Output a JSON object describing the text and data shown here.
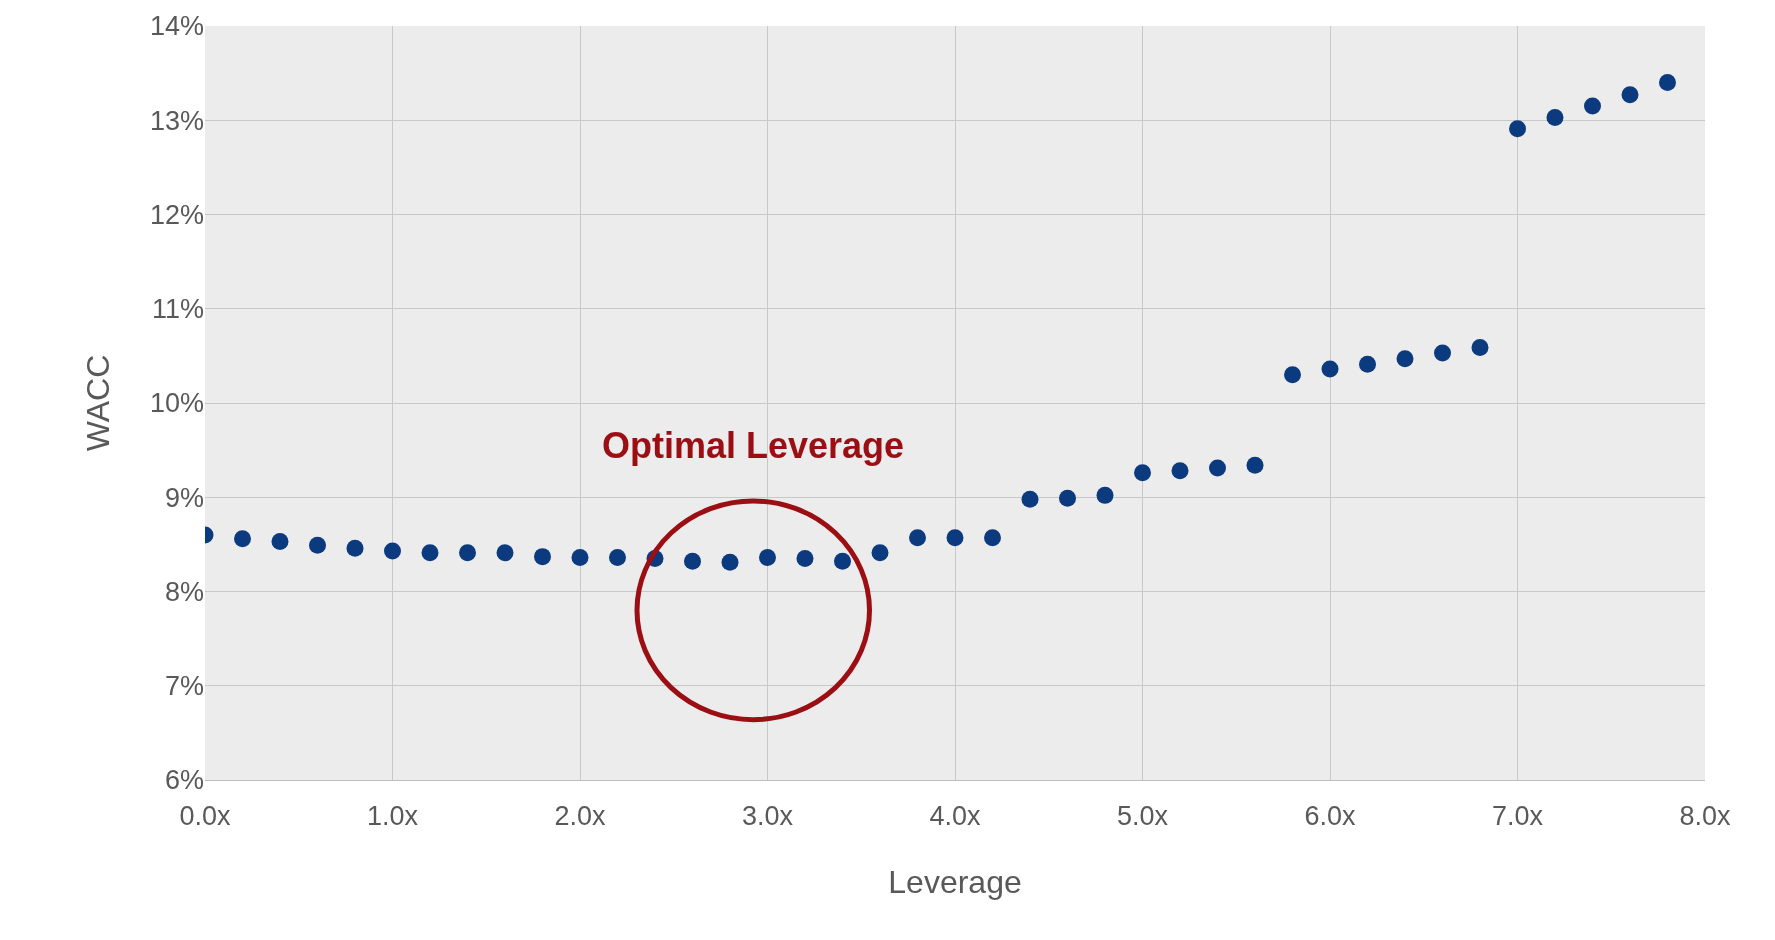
{
  "chart_data": {
    "type": "scatter",
    "xlabel": "Leverage",
    "ylabel": "WACC",
    "marker": "circle",
    "grid": true,
    "legend": false,
    "x": [
      0,
      0.2,
      0.4,
      0.6,
      0.8,
      1.0,
      1.2,
      1.4,
      1.6,
      1.8,
      2.0,
      2.2,
      2.4,
      2.6,
      2.8,
      3.0,
      3.2,
      3.4,
      3.6,
      3.8,
      4.0,
      4.2,
      4.4,
      4.6,
      4.8,
      5.0,
      5.2,
      5.4,
      5.6,
      5.8,
      6.0,
      6.2,
      6.4,
      6.6,
      6.8,
      7.0,
      7.2,
      7.4,
      7.6,
      7.8
    ],
    "series": [
      {
        "color": "#0b3a7e",
        "values": [
          8.6,
          8.56,
          8.53,
          8.49,
          8.46,
          8.43,
          8.41,
          8.41,
          8.41,
          8.37,
          8.36,
          8.36,
          8.35,
          8.32,
          8.31,
          8.36,
          8.35,
          8.32,
          8.41,
          8.57,
          8.57,
          8.57,
          8.98,
          8.99,
          9.02,
          9.26,
          9.28,
          9.31,
          9.34,
          10.3,
          10.36,
          10.41,
          10.47,
          10.53,
          10.59,
          12.91,
          13.03,
          13.15,
          13.27,
          13.4
        ]
      }
    ],
    "xlim": [
      0,
      8
    ],
    "xticks": [
      {
        "value": 0,
        "label": "0.0x"
      },
      {
        "value": 1,
        "label": "1.0x"
      },
      {
        "value": 2,
        "label": "2.0x"
      },
      {
        "value": 3,
        "label": "3.0x"
      },
      {
        "value": 4,
        "label": "4.0x"
      },
      {
        "value": 5,
        "label": "5.0x"
      },
      {
        "value": 6,
        "label": "6.0x"
      },
      {
        "value": 7,
        "label": "7.0x"
      },
      {
        "value": 8,
        "label": "8.0x"
      }
    ],
    "ylim": [
      6,
      14
    ],
    "yticks": [
      {
        "value": 6,
        "label": "6%"
      },
      {
        "value": 7,
        "label": "7%"
      },
      {
        "value": 8,
        "label": "8%"
      },
      {
        "value": 9,
        "label": "9%"
      },
      {
        "value": 10,
        "label": "10%"
      },
      {
        "value": 11,
        "label": "11%"
      },
      {
        "value": 12,
        "label": "12%"
      },
      {
        "value": 13,
        "label": "13%"
      },
      {
        "value": 14,
        "label": "14%"
      }
    ],
    "annotations": [
      "Optimal Leverage"
    ]
  }
}
